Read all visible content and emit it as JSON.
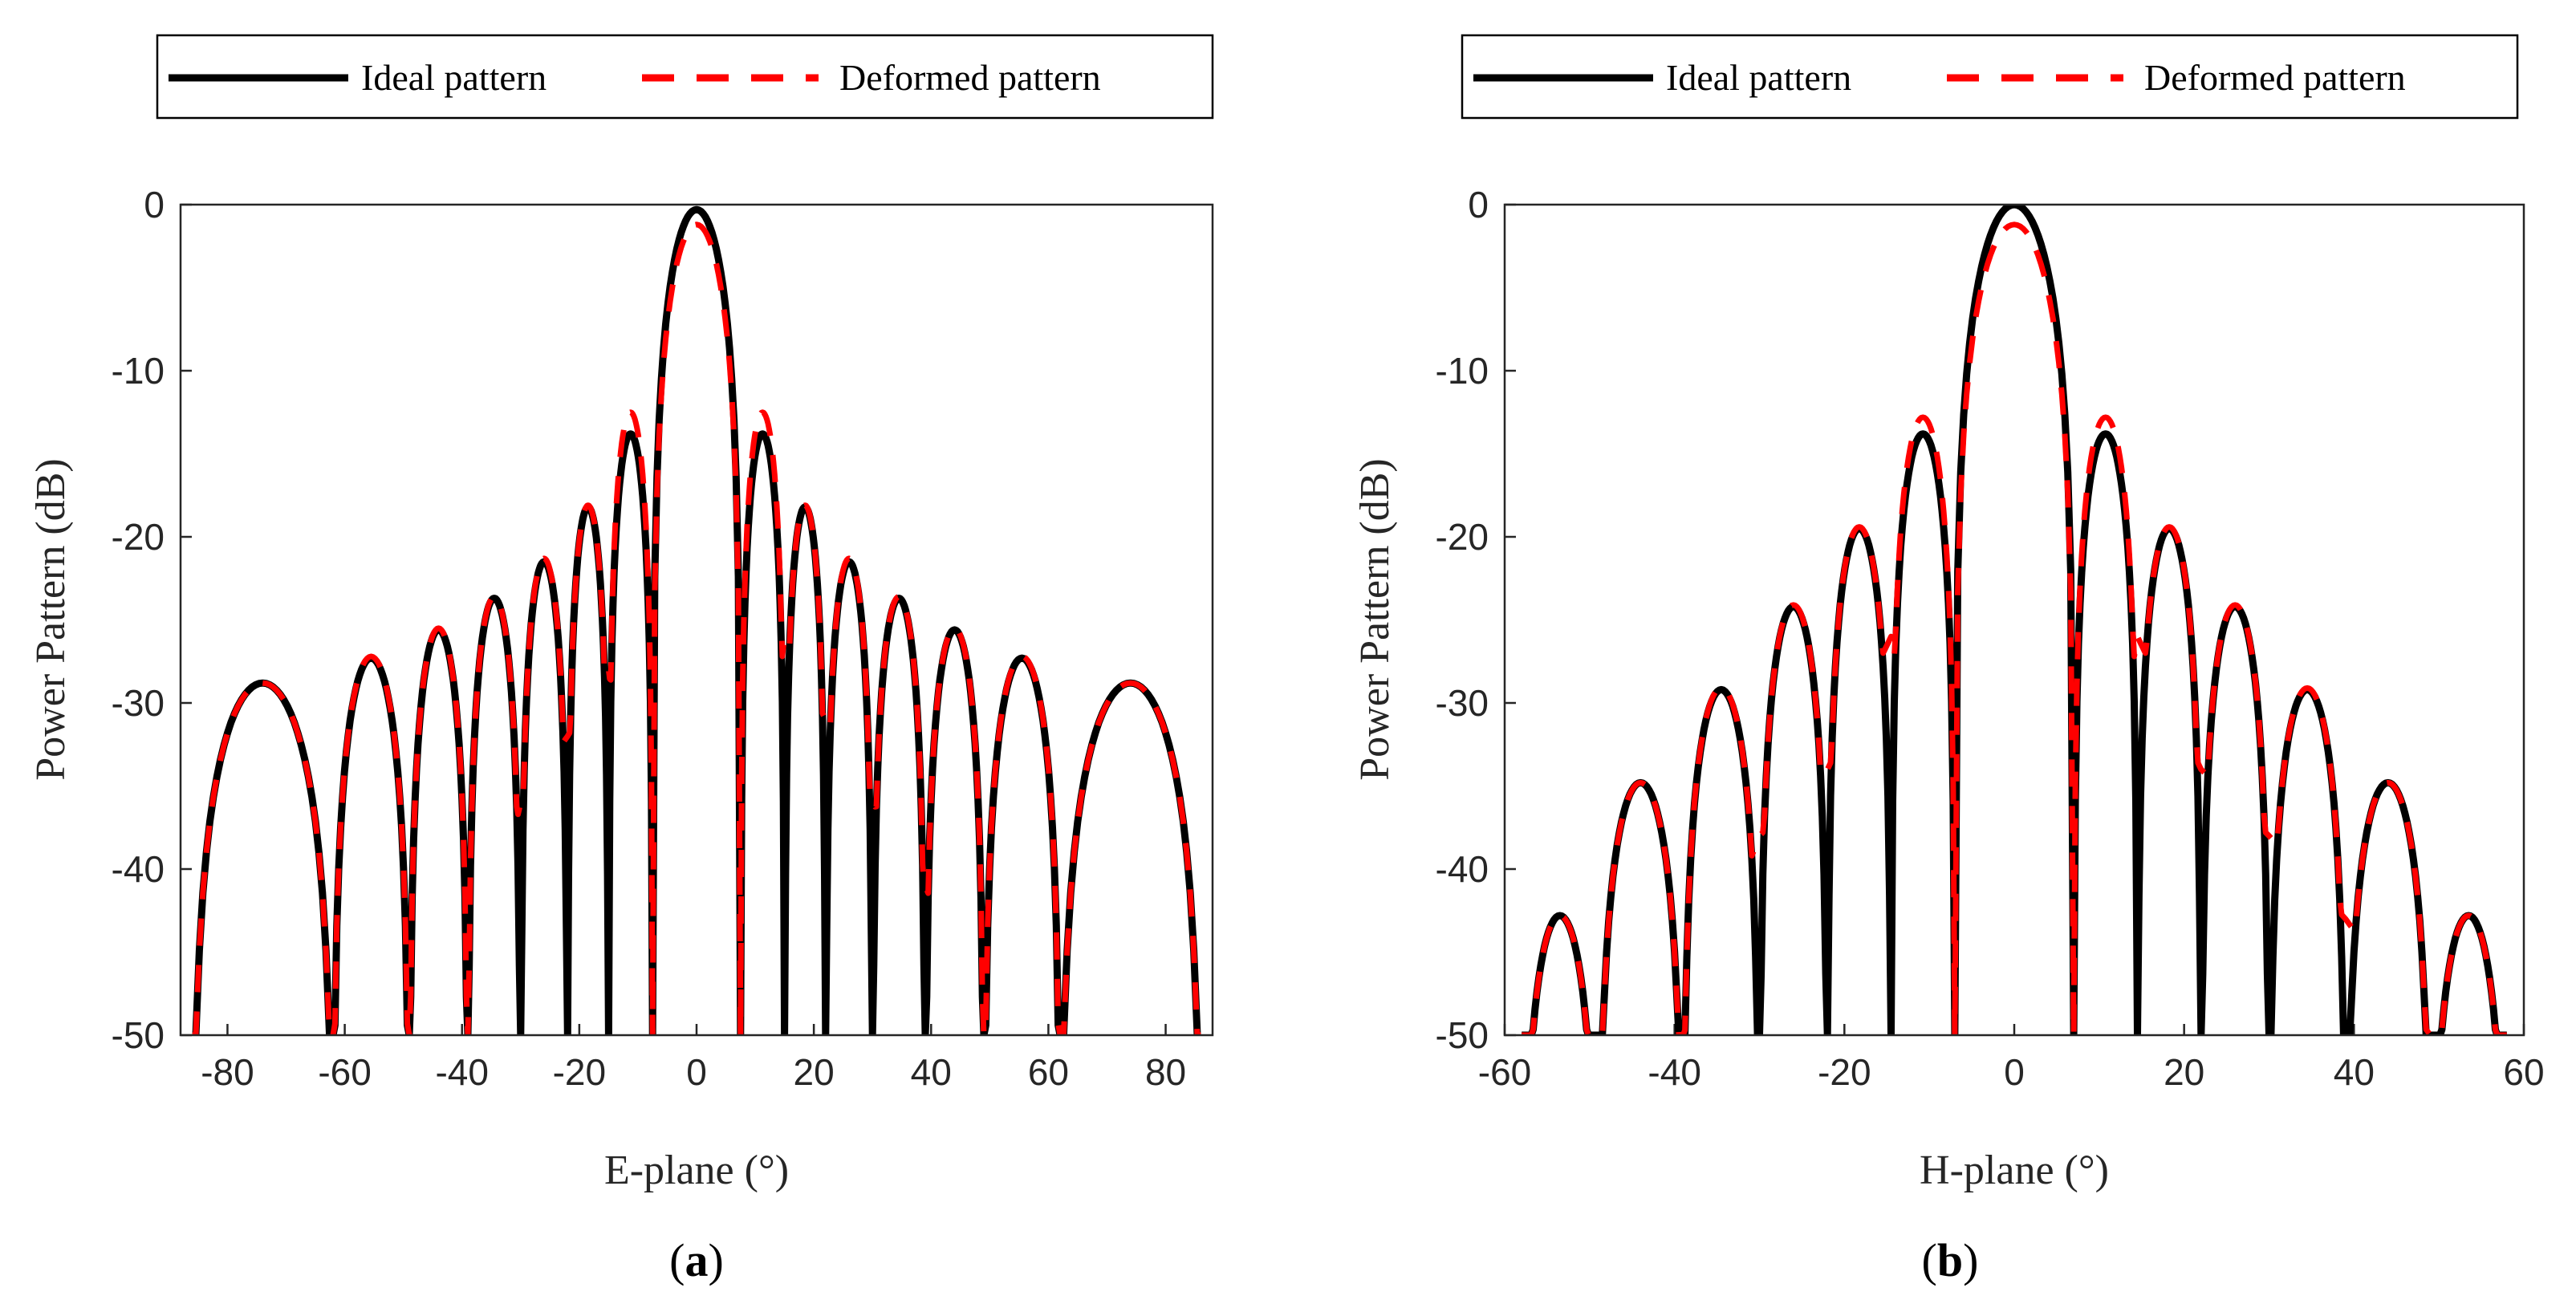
{
  "colors": {
    "ideal": "#000000",
    "deformed": "#ff0000"
  },
  "chart_data": [
    {
      "type": "line",
      "panel_label": "a",
      "xlabel": "E-plane (°)",
      "ylabel": "Power Pattern (dB)",
      "xlim": [
        -88,
        88
      ],
      "ylim": [
        -50,
        0
      ],
      "xticks": [
        -80,
        -60,
        -40,
        -20,
        0,
        20,
        40,
        60,
        80
      ],
      "yticks": [
        0,
        -10,
        -20,
        -30,
        -40,
        -50
      ],
      "legend": [
        "Ideal pattern",
        "Deformed pattern"
      ],
      "legend_position": "top",
      "series": [
        {
          "name": "Ideal pattern",
          "nulls": [
            -86,
            -62,
            -49,
            -39,
            -30,
            -22,
            -15,
            -7.5,
            7.5,
            15,
            22,
            30,
            39,
            49,
            62,
            86
          ],
          "lobes": [
            {
              "x": -70,
              "y": -28.8
            },
            {
              "x": -55,
              "y": -27.3
            },
            {
              "x": -44,
              "y": -25.6
            },
            {
              "x": -34,
              "y": -23.7
            },
            {
              "x": -26,
              "y": -21.5
            },
            {
              "x": -18,
              "y": -18.2
            },
            {
              "x": -10.5,
              "y": -13.8
            },
            {
              "x": 0,
              "y": -0.3
            },
            {
              "x": 10.5,
              "y": -13.8
            },
            {
              "x": 18,
              "y": -18.2
            },
            {
              "x": 26,
              "y": -21.5
            },
            {
              "x": 34,
              "y": -23.7
            },
            {
              "x": 44,
              "y": -25.6
            },
            {
              "x": 55,
              "y": -27.3
            },
            {
              "x": 70,
              "y": -28.8
            }
          ]
        },
        {
          "name": "Deformed pattern",
          "nulls": [
            -86,
            -62,
            -49,
            -39,
            -30,
            -22,
            -15,
            -7.5,
            7.5,
            15,
            22,
            30,
            39,
            49,
            62,
            86
          ],
          "null_floors": [
            -50,
            -50,
            -50,
            -50,
            -36,
            -32,
            -28,
            -50,
            -50,
            -26,
            -31,
            -36,
            -41,
            -50,
            -50,
            -50
          ],
          "lobes": [
            {
              "x": -70,
              "y": -28.8
            },
            {
              "x": -55,
              "y": -27.2
            },
            {
              "x": -44,
              "y": -25.5
            },
            {
              "x": -34,
              "y": -23.6
            },
            {
              "x": -26,
              "y": -21.3
            },
            {
              "x": -18,
              "y": -18.1
            },
            {
              "x": -10.5,
              "y": -12.5
            },
            {
              "x": 0,
              "y": -1.2
            },
            {
              "x": 10.5,
              "y": -12.5
            },
            {
              "x": 18,
              "y": -18.1
            },
            {
              "x": 26,
              "y": -21.3
            },
            {
              "x": 34,
              "y": -23.6
            },
            {
              "x": 44,
              "y": -25.5
            },
            {
              "x": 55,
              "y": -27.2
            },
            {
              "x": 70,
              "y": -28.8
            }
          ]
        }
      ]
    },
    {
      "type": "line",
      "panel_label": "b",
      "xlabel": "H-plane (°)",
      "ylabel": "Power Pattern (dB)",
      "xlim": [
        -60,
        60
      ],
      "ylim": [
        -50,
        0
      ],
      "xticks": [
        -60,
        -40,
        -20,
        0,
        20,
        40,
        60
      ],
      "yticks": [
        0,
        -10,
        -20,
        -30,
        -40,
        -50
      ],
      "legend": [
        "Ideal pattern",
        "Deformed pattern"
      ],
      "legend_position": "top",
      "series": [
        {
          "name": "Ideal pattern",
          "nulls": [
            -58,
            -49,
            -39,
            -30,
            -22,
            -14.5,
            -7,
            7,
            14.5,
            22,
            30,
            39,
            49,
            58
          ],
          "lobes": [
            {
              "x": -53,
              "y": -42.8
            },
            {
              "x": -43.5,
              "y": -34.8
            },
            {
              "x": -34,
              "y": -29.2
            },
            {
              "x": -26,
              "y": -24.2
            },
            {
              "x": -18,
              "y": -19.5
            },
            {
              "x": -10.5,
              "y": -13.8
            },
            {
              "x": 0,
              "y": 0
            },
            {
              "x": 10.5,
              "y": -13.8
            },
            {
              "x": 18,
              "y": -19.5
            },
            {
              "x": 26,
              "y": -24.2
            },
            {
              "x": 34,
              "y": -29.2
            },
            {
              "x": 43.5,
              "y": -34.8
            },
            {
              "x": 53,
              "y": -42.8
            }
          ]
        },
        {
          "name": "Deformed pattern",
          "nulls": [
            -58,
            -49,
            -39,
            -30,
            -22,
            -14.5,
            -7,
            7,
            14.5,
            22,
            30,
            39,
            49,
            58
          ],
          "null_floors": [
            -50,
            -50,
            -50,
            -38,
            -34,
            -26,
            -50,
            -50,
            -26,
            -34,
            -38,
            -43,
            -50,
            -50
          ],
          "lobes": [
            {
              "x": -53,
              "y": -42.8
            },
            {
              "x": -43.5,
              "y": -34.8
            },
            {
              "x": -34,
              "y": -29.1
            },
            {
              "x": -26,
              "y": -24.1
            },
            {
              "x": -18,
              "y": -19.4
            },
            {
              "x": -10.5,
              "y": -12.8
            },
            {
              "x": 0,
              "y": -1.2
            },
            {
              "x": 10.5,
              "y": -12.8
            },
            {
              "x": 18,
              "y": -19.4
            },
            {
              "x": 26,
              "y": -24.1
            },
            {
              "x": 34,
              "y": -29.1
            },
            {
              "x": 43.5,
              "y": -34.8
            },
            {
              "x": 53,
              "y": -42.8
            }
          ]
        }
      ]
    }
  ]
}
